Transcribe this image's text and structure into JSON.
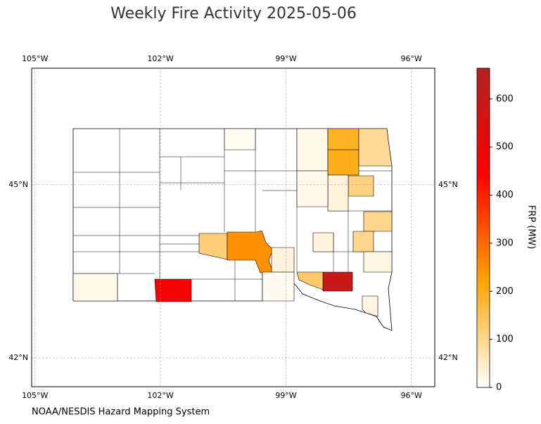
{
  "title": "Weekly Fire Activity 2025-05-06",
  "credit": "NOAA/NESDIS Hazard Mapping System",
  "map": {
    "xlim": [
      -105.08,
      -95.44
    ],
    "ylim": [
      41.5,
      47.02
    ],
    "xticks": [
      {
        "value": -105,
        "label": "105°W"
      },
      {
        "value": -102,
        "label": "102°W"
      },
      {
        "value": -99,
        "label": "99°W"
      },
      {
        "value": -96,
        "label": "96°W"
      }
    ],
    "yticks": [
      {
        "value": 42,
        "label": "42°N"
      },
      {
        "value": 45,
        "label": "45°N"
      }
    ],
    "grid": true
  },
  "colorbar": {
    "label": "FRP (MW)",
    "lim": [
      0,
      664
    ],
    "ticks": [
      0,
      100,
      200,
      300,
      400,
      500,
      600
    ],
    "colors": [
      "#ffffff",
      "#ffa500",
      "#ff0000",
      "#b22222"
    ]
  },
  "counties": [
    20,
    470,
    120,
    250,
    15,
    20,
    190,
    200,
    90,
    110,
    30,
    20,
    100,
    100,
    30,
    30,
    600,
    130,
    25,
    25,
    10
  ]
}
